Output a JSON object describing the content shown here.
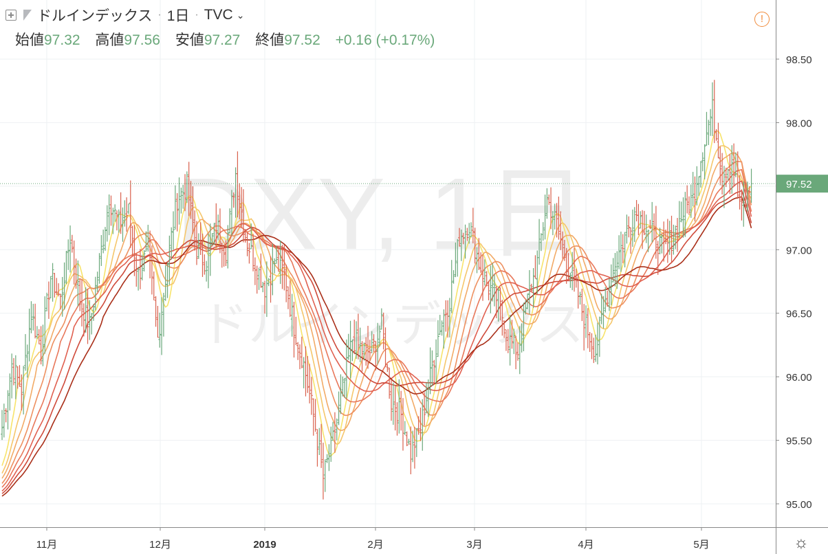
{
  "header": {
    "symbol_name": "ドルインデックス",
    "interval": "1日",
    "exchange": "TVC"
  },
  "ohlc": {
    "open_label": "始値",
    "open": "97.32",
    "high_label": "高値",
    "high": "97.56",
    "low_label": "安値",
    "low": "97.27",
    "close_label": "終値",
    "close": "97.52",
    "change": "+0.16 (+0.17%)"
  },
  "watermark": {
    "line1": "DXY, 1日",
    "line2": "ドルインデックス"
  },
  "colors": {
    "up": "#6aa87a",
    "down": "#d9604c",
    "price_label_bg": "#6aa87a",
    "ribbon": [
      "#f7e36a",
      "#f5c66b",
      "#f2aa66",
      "#ee9060",
      "#e8775a",
      "#e06050",
      "#cf4a3a",
      "#a92e18"
    ]
  },
  "chart_data": {
    "type": "ohlc",
    "y_axis": {
      "min": 95.0,
      "max": 98.5,
      "ticks": [
        "95.00",
        "95.50",
        "96.00",
        "96.50",
        "97.00",
        "97.50",
        "98.00",
        "98.50"
      ]
    },
    "x_axis": {
      "ticks": [
        "11月",
        "12月",
        "2019",
        "2月",
        "3月",
        "4月",
        "5月"
      ]
    },
    "last_price": "97.52",
    "last_price_value": 97.52,
    "grid": true,
    "close_path": [
      [
        0,
        95.6
      ],
      [
        5,
        96.1
      ],
      [
        10,
        95.9
      ],
      [
        15,
        96.5
      ],
      [
        20,
        96.2
      ],
      [
        25,
        96.8
      ],
      [
        30,
        96.6
      ],
      [
        35,
        97.1
      ],
      [
        40,
        96.6
      ],
      [
        45,
        96.4
      ],
      [
        50,
        96.9
      ],
      [
        55,
        97.4
      ],
      [
        60,
        97.2
      ],
      [
        65,
        97.3
      ],
      [
        70,
        96.8
      ],
      [
        75,
        97.0
      ],
      [
        80,
        96.3
      ],
      [
        85,
        96.9
      ],
      [
        90,
        97.4
      ],
      [
        95,
        97.5
      ],
      [
        100,
        97.0
      ],
      [
        105,
        96.9
      ],
      [
        110,
        97.2
      ],
      [
        115,
        97.0
      ],
      [
        120,
        97.6
      ],
      [
        125,
        97.1
      ],
      [
        130,
        96.9
      ],
      [
        135,
        96.7
      ],
      [
        140,
        96.9
      ],
      [
        145,
        96.8
      ],
      [
        150,
        96.4
      ],
      [
        155,
        96.1
      ],
      [
        160,
        95.7
      ],
      [
        165,
        95.2
      ],
      [
        170,
        95.5
      ],
      [
        175,
        95.9
      ],
      [
        180,
        96.3
      ],
      [
        185,
        96.2
      ],
      [
        190,
        96.2
      ],
      [
        195,
        96.4
      ],
      [
        200,
        95.8
      ],
      [
        205,
        95.7
      ],
      [
        210,
        95.4
      ],
      [
        215,
        95.6
      ],
      [
        220,
        96.0
      ],
      [
        225,
        96.4
      ],
      [
        230,
        96.6
      ],
      [
        235,
        97.1
      ],
      [
        240,
        97.2
      ],
      [
        245,
        96.9
      ],
      [
        250,
        96.7
      ],
      [
        255,
        96.6
      ],
      [
        260,
        96.3
      ],
      [
        265,
        96.2
      ],
      [
        270,
        96.6
      ],
      [
        275,
        96.9
      ],
      [
        280,
        97.4
      ],
      [
        285,
        97.2
      ],
      [
        290,
        96.9
      ],
      [
        295,
        96.7
      ],
      [
        300,
        96.4
      ],
      [
        305,
        96.2
      ],
      [
        310,
        96.6
      ],
      [
        315,
        96.9
      ],
      [
        320,
        97.1
      ],
      [
        325,
        97.3
      ],
      [
        330,
        97.2
      ],
      [
        335,
        97.1
      ],
      [
        340,
        97.0
      ],
      [
        345,
        97.1
      ],
      [
        350,
        97.3
      ],
      [
        355,
        97.4
      ],
      [
        360,
        97.8
      ],
      [
        365,
        98.1
      ],
      [
        370,
        97.6
      ],
      [
        375,
        97.7
      ],
      [
        380,
        97.3
      ],
      [
        385,
        97.5
      ]
    ],
    "ribbon_start": [
      95.3,
      95.24,
      95.2,
      95.16,
      95.13,
      95.1,
      95.08,
      95.06
    ],
    "ribbon_end": [
      97.5,
      97.45,
      97.4,
      97.35,
      97.3,
      97.26,
      97.21,
      97.17
    ]
  }
}
